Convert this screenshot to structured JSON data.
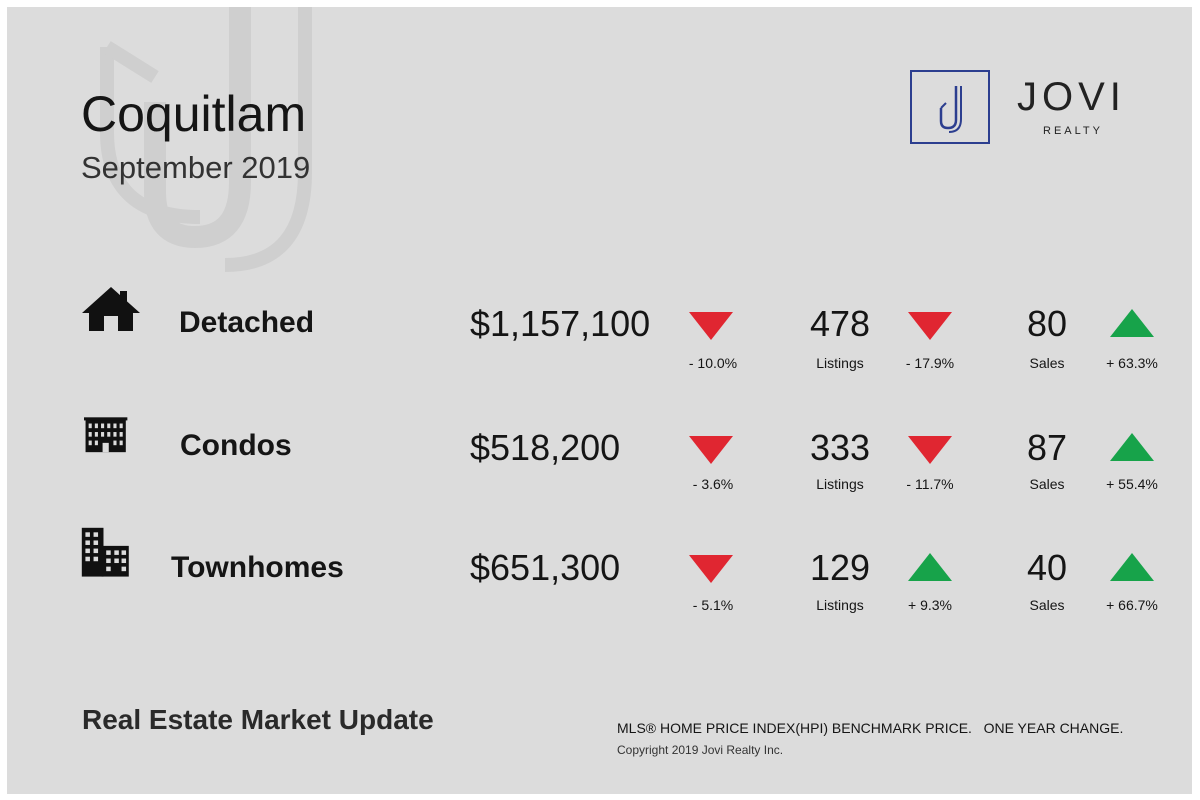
{
  "header": {
    "city": "Coquitlam",
    "month": "September 2019"
  },
  "brand": {
    "name": "JOVI",
    "subtitle": "REALTY",
    "logo_letter": "J",
    "accent": "#2c3e8f"
  },
  "colors": {
    "down": "#e02631",
    "up": "#17a34a"
  },
  "rows": [
    {
      "title": "Detached",
      "icon": "house-icon",
      "price": "$1,157,100",
      "price_change": "- 10.0%",
      "price_dir": "down",
      "listings": "478",
      "listings_label": "Listings",
      "listings_change": "- 17.9%",
      "listings_dir": "down",
      "sales": "80",
      "sales_label": "Sales",
      "sales_change": "+ 63.3%",
      "sales_dir": "up"
    },
    {
      "title": "Condos",
      "icon": "condo-building-icon",
      "price": "$518,200",
      "price_change": "- 3.6%",
      "price_dir": "down",
      "listings": "333",
      "listings_label": "Listings",
      "listings_change": "- 11.7%",
      "listings_dir": "down",
      "sales": "87",
      "sales_label": "Sales",
      "sales_change": "+ 55.4%",
      "sales_dir": "up"
    },
    {
      "title": "Townhomes",
      "icon": "townhome-building-icon",
      "price": "$651,300",
      "price_change": "- 5.1%",
      "price_dir": "down",
      "listings": "129",
      "listings_label": "Listings",
      "listings_change": "+ 9.3%",
      "listings_dir": "up",
      "sales": "40",
      "sales_label": "Sales",
      "sales_change": "+ 66.7%",
      "sales_dir": "up"
    }
  ],
  "footer": {
    "title": "Real Estate Market Update",
    "note": "MLS® HOME PRICE INDEX(HPI) BENCHMARK PRICE.   ONE YEAR CHANGE.",
    "copyright": "Copyright 2019 Jovi Realty Inc."
  }
}
